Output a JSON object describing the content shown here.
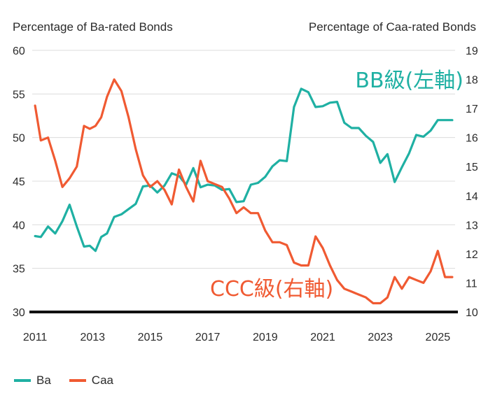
{
  "chart_data": {
    "type": "line",
    "left_axis_title": "Percentage of Ba-rated Bonds",
    "right_axis_title": "Percentage of Caa-rated Bonds",
    "y_left_lim": [
      30,
      60
    ],
    "y_left_ticks": [
      30,
      35,
      40,
      45,
      50,
      55,
      60
    ],
    "y_right_lim": [
      10,
      19
    ],
    "y_right_ticks": [
      10,
      11,
      12,
      13,
      14,
      15,
      16,
      17,
      18,
      19
    ],
    "x_lim": [
      2010.9,
      2025.6
    ],
    "x_ticks": [
      2011,
      2013,
      2015,
      2017,
      2019,
      2021,
      2023,
      2025
    ],
    "grid": "horizontal",
    "legend_position": "bottom-left",
    "annotations": [
      {
        "text": "BB級(左軸)",
        "color": "#1fb0a3",
        "series": "Ba"
      },
      {
        "text": "CCC級(右軸)",
        "color": "#f05a32",
        "series": "Caa"
      }
    ],
    "series": [
      {
        "name": "Ba",
        "axis": "left",
        "color": "#1fb0a3",
        "x": [
          2011.0,
          2011.2,
          2011.45,
          2011.7,
          2011.95,
          2012.2,
          2012.45,
          2012.7,
          2012.9,
          2013.1,
          2013.3,
          2013.5,
          2013.75,
          2014.0,
          2014.25,
          2014.5,
          2014.75,
          2015.0,
          2015.25,
          2015.5,
          2015.75,
          2016.0,
          2016.25,
          2016.5,
          2016.75,
          2017.0,
          2017.25,
          2017.5,
          2017.75,
          2018.0,
          2018.25,
          2018.5,
          2018.75,
          2019.0,
          2019.25,
          2019.5,
          2019.75,
          2020.0,
          2020.25,
          2020.5,
          2020.75,
          2021.0,
          2021.25,
          2021.5,
          2021.75,
          2022.0,
          2022.25,
          2022.5,
          2022.75,
          2023.0,
          2023.25,
          2023.5,
          2023.75,
          2024.0,
          2024.25,
          2024.5,
          2024.75,
          2025.0,
          2025.25,
          2025.5
        ],
        "values": [
          38.7,
          38.6,
          39.8,
          39.0,
          40.4,
          42.3,
          39.8,
          37.5,
          37.6,
          37.0,
          38.6,
          39.0,
          40.9,
          41.2,
          41.8,
          42.4,
          44.4,
          44.5,
          43.7,
          44.5,
          45.9,
          45.6,
          44.6,
          46.5,
          44.3,
          44.6,
          44.5,
          44.0,
          44.1,
          42.6,
          42.7,
          44.6,
          44.8,
          45.5,
          46.7,
          47.4,
          47.3,
          53.5,
          55.6,
          55.2,
          53.5,
          53.6,
          54.0,
          54.1,
          51.7,
          51.1,
          51.1,
          50.2,
          49.5,
          47.1,
          48.1,
          44.9,
          46.6,
          48.2,
          50.3,
          50.1,
          50.8,
          52.0,
          52.0,
          52.0
        ]
      },
      {
        "name": "Caa",
        "axis": "right",
        "color": "#f05a32",
        "x": [
          2011.0,
          2011.2,
          2011.45,
          2011.7,
          2011.95,
          2012.2,
          2012.45,
          2012.7,
          2012.9,
          2013.1,
          2013.3,
          2013.5,
          2013.75,
          2014.0,
          2014.25,
          2014.5,
          2014.75,
          2015.0,
          2015.25,
          2015.5,
          2015.75,
          2016.0,
          2016.25,
          2016.5,
          2016.75,
          2017.0,
          2017.25,
          2017.5,
          2017.75,
          2018.0,
          2018.25,
          2018.5,
          2018.75,
          2019.0,
          2019.25,
          2019.5,
          2019.75,
          2020.0,
          2020.25,
          2020.5,
          2020.75,
          2021.0,
          2021.25,
          2021.5,
          2021.75,
          2022.0,
          2022.25,
          2022.5,
          2022.75,
          2023.0,
          2023.25,
          2023.5,
          2023.75,
          2024.0,
          2024.25,
          2024.5,
          2024.75,
          2025.0,
          2025.25,
          2025.5
        ],
        "values": [
          17.1,
          15.9,
          16.0,
          15.2,
          14.3,
          14.6,
          15.0,
          16.4,
          16.3,
          16.4,
          16.7,
          17.4,
          18.0,
          17.6,
          16.7,
          15.6,
          14.7,
          14.3,
          14.5,
          14.2,
          13.7,
          14.9,
          14.3,
          13.8,
          15.2,
          14.5,
          14.4,
          14.3,
          13.9,
          13.4,
          13.6,
          13.4,
          13.4,
          12.8,
          12.4,
          12.4,
          12.3,
          11.7,
          11.6,
          11.6,
          12.6,
          12.2,
          11.6,
          11.1,
          10.8,
          10.7,
          10.6,
          10.5,
          10.3,
          10.3,
          10.5,
          11.2,
          10.8,
          11.2,
          11.1,
          11.0,
          11.4,
          12.1,
          11.2,
          11.2
        ]
      }
    ],
    "legend": [
      {
        "name": "Ba",
        "color": "#1fb0a3"
      },
      {
        "name": "Caa",
        "color": "#f05a32"
      }
    ]
  }
}
